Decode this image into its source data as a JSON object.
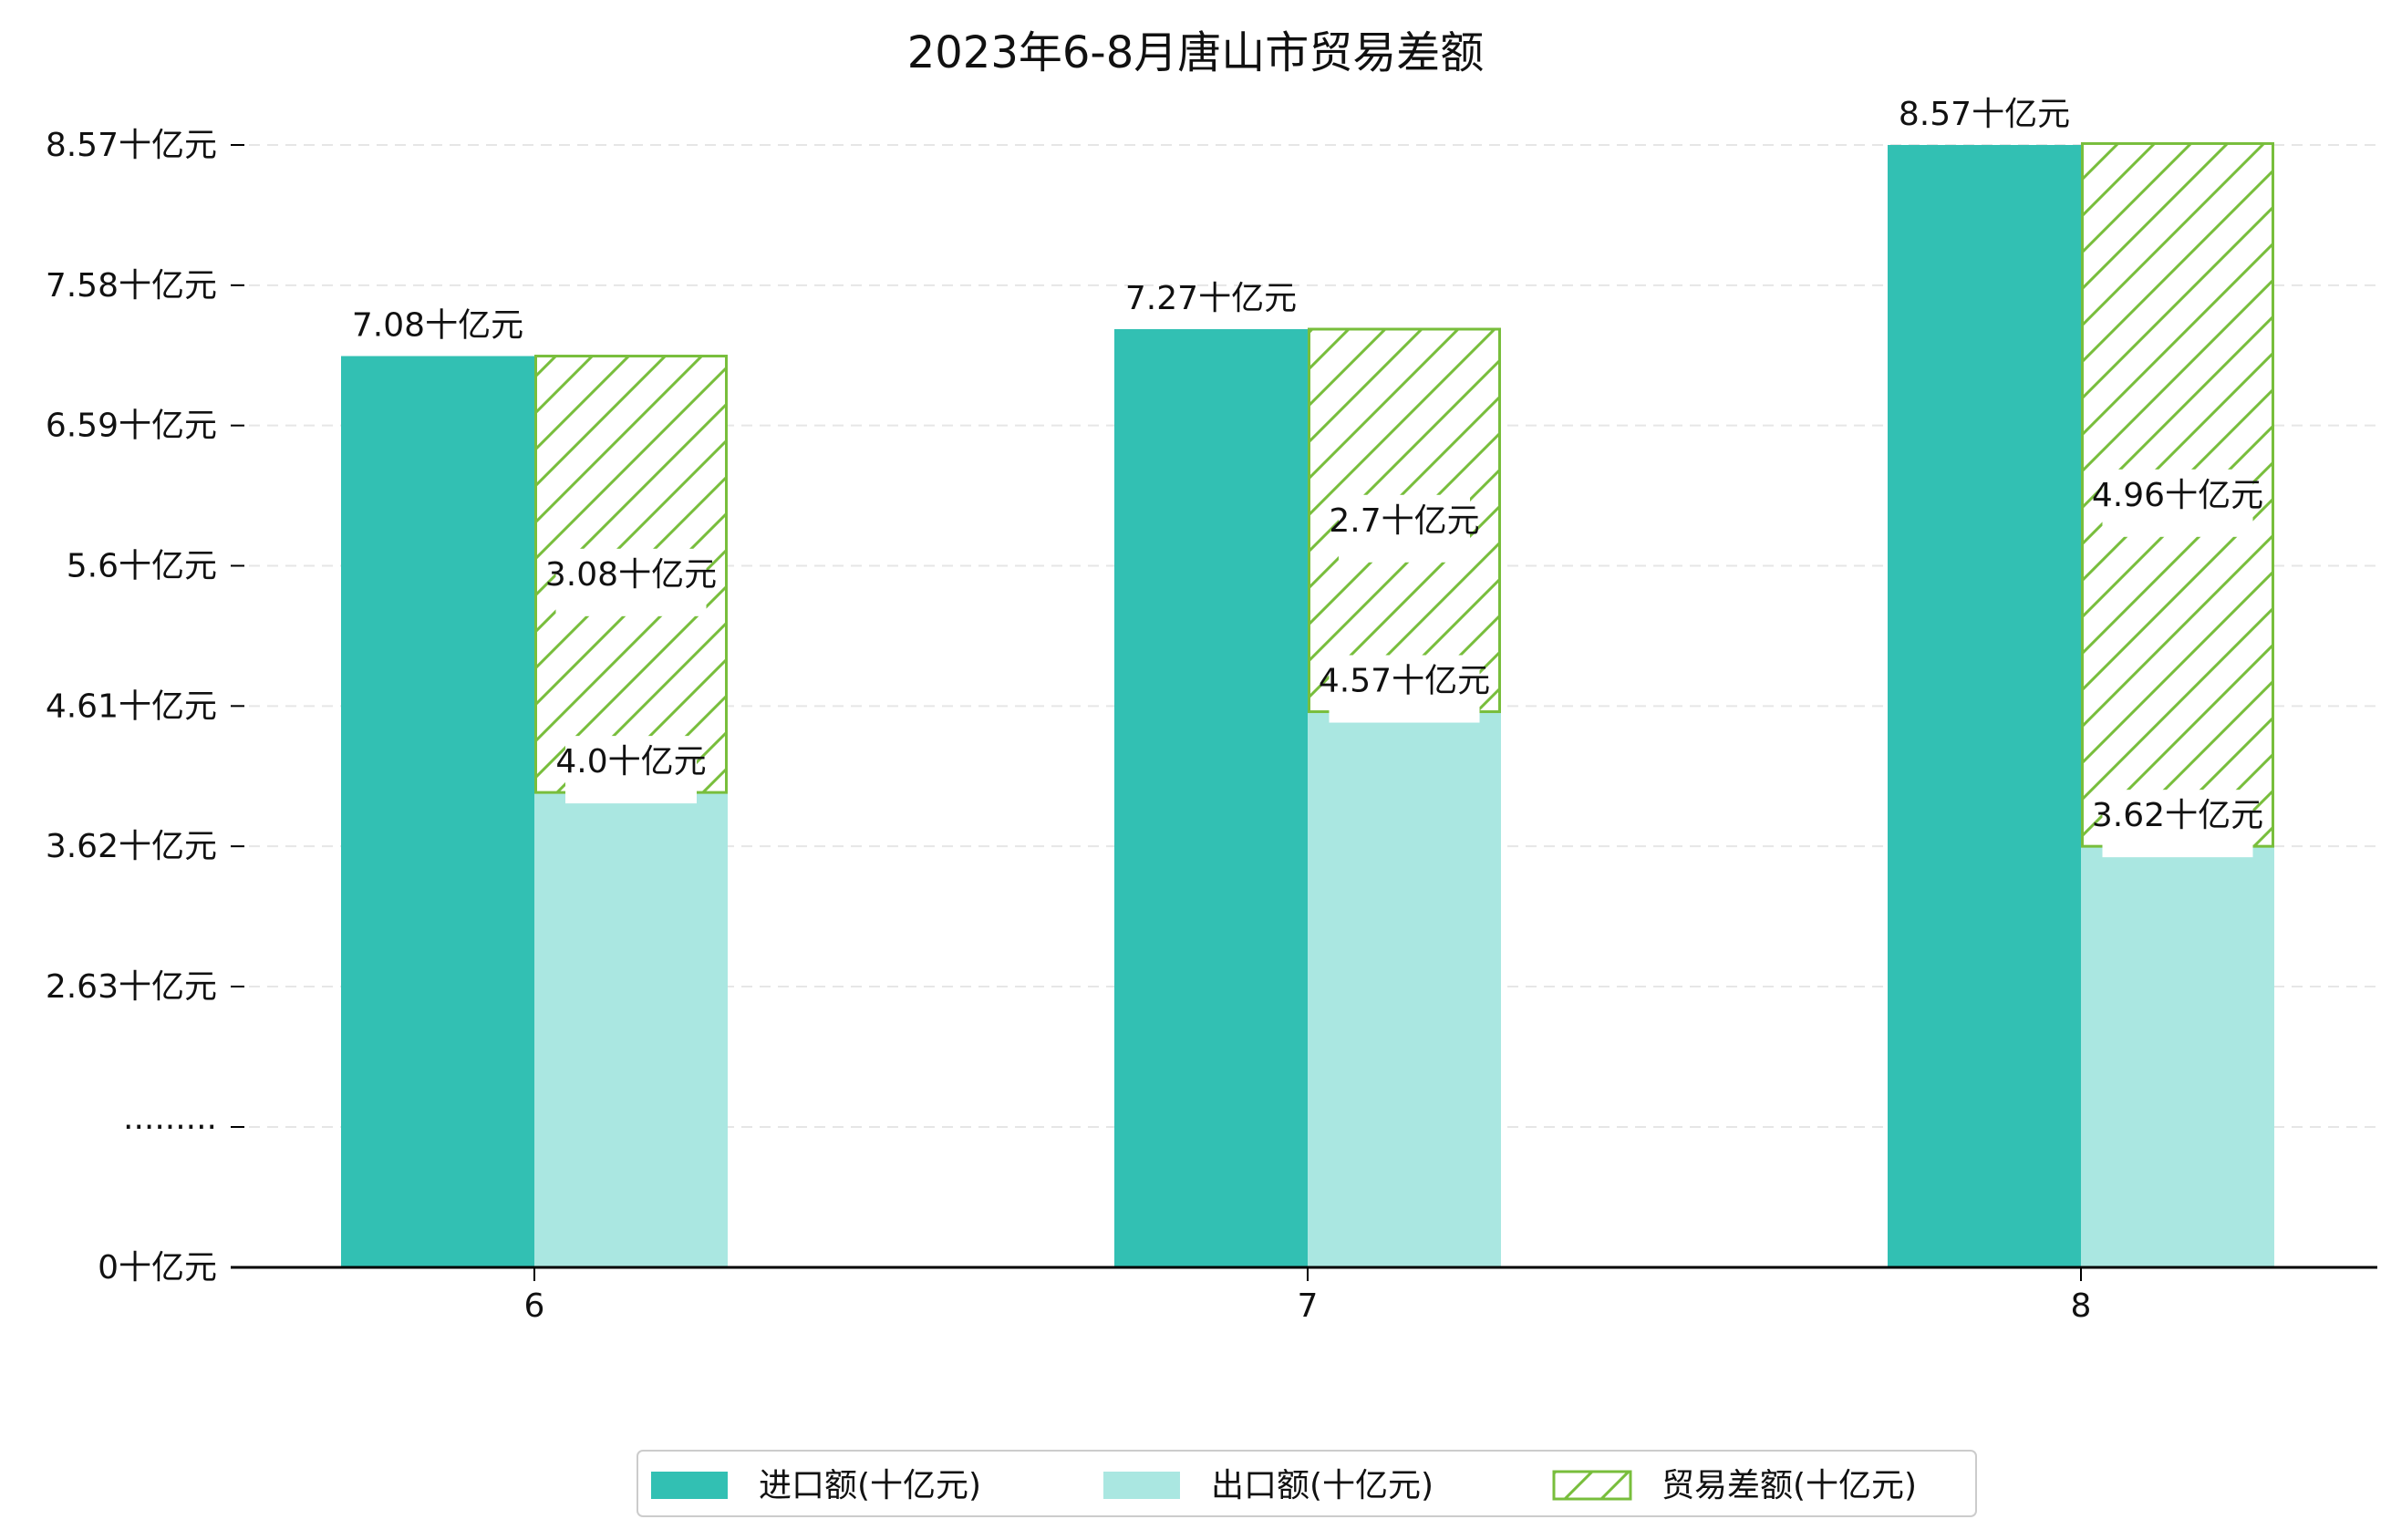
{
  "chart_data": {
    "type": "bar",
    "title": "2023年6-8月唐山市贸易差额",
    "categories": [
      "6",
      "7",
      "8"
    ],
    "series": [
      {
        "name": "进口额(十亿元)",
        "values": [
          7.08,
          7.27,
          8.57
        ],
        "labels": [
          "7.08十亿元",
          "7.27十亿元",
          "8.57十亿元"
        ],
        "color": "#32c0b3"
      },
      {
        "name": "出口额(十亿元)",
        "values": [
          4.0,
          4.57,
          3.62
        ],
        "labels": [
          "4.0十亿元",
          "4.57十亿元",
          "3.62十亿元"
        ],
        "color": "#aae7e1"
      },
      {
        "name": "贸易差额(十亿元)",
        "values": [
          3.08,
          2.7,
          4.96
        ],
        "labels": [
          "3.08十亿元",
          "2.7十亿元",
          "4.96十亿元"
        ],
        "color": "#78be3c",
        "pattern": "hatch",
        "stacked_on": "出口额(十亿元)"
      }
    ],
    "y_ticks": [
      {
        "value": 0,
        "label": "0十亿元"
      },
      {
        "value": 1.64,
        "label": "·········"
      },
      {
        "value": 2.63,
        "label": "2.63十亿元"
      },
      {
        "value": 3.62,
        "label": "3.62十亿元"
      },
      {
        "value": 4.61,
        "label": "4.61十亿元"
      },
      {
        "value": 5.6,
        "label": "5.6十亿元"
      },
      {
        "value": 6.59,
        "label": "6.59十亿元"
      },
      {
        "value": 7.58,
        "label": "7.58十亿元"
      },
      {
        "value": 8.57,
        "label": "8.57十亿元"
      }
    ],
    "y_axis_break": true,
    "grid": "horizontal dashed",
    "legend_position": "bottom-center"
  }
}
